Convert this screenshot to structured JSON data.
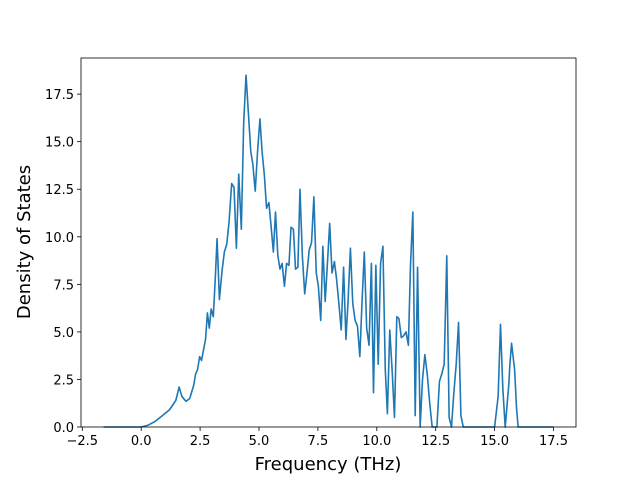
{
  "chart_data": {
    "type": "line",
    "xlabel": "Frequency (THz)",
    "ylabel": "Density of States",
    "xlim": [
      -2.555,
      18.455
    ],
    "ylim": [
      0,
      19.4
    ],
    "xticks": [
      {
        "value": -2.5,
        "label": "−2.5"
      },
      {
        "value": 0,
        "label": "0.0"
      },
      2.5,
      {
        "value": 5,
        "label": "5.0"
      },
      7.5,
      {
        "value": 10,
        "label": "10.0"
      },
      12.5,
      {
        "value": 15,
        "label": "15.0"
      },
      17.5
    ],
    "yticks": [
      {
        "value": 0,
        "label": "0.0"
      },
      2.5,
      {
        "value": 5,
        "label": "5.0"
      },
      7.5,
      {
        "value": 10,
        "label": "10.0"
      },
      12.5,
      {
        "value": 15,
        "label": "15.0"
      },
      17.5
    ],
    "color": "#1f77b4",
    "x": [
      -1.6,
      0,
      0.3,
      0.6,
      0.9,
      1.2,
      1.47,
      1.61,
      1.73,
      1.9,
      2.06,
      2.23,
      2.31,
      2.39,
      2.48,
      2.56,
      2.73,
      2.81,
      2.89,
      2.97,
      3.06,
      3.14,
      3.22,
      3.32,
      3.43,
      3.53,
      3.63,
      3.73,
      3.84,
      3.94,
      4.04,
      4.14,
      4.25,
      4.35,
      4.45,
      4.55,
      4.65,
      4.74,
      4.84,
      4.94,
      5.04,
      5.13,
      5.23,
      5.32,
      5.42,
      5.51,
      5.61,
      5.7,
      5.8,
      5.89,
      5.98,
      6.08,
      6.17,
      6.27,
      6.36,
      6.46,
      6.55,
      6.65,
      6.74,
      6.84,
      6.94,
      7.03,
      7.13,
      7.23,
      7.33,
      7.43,
      7.52,
      7.62,
      7.71,
      7.81,
      7.9,
      8.0,
      8.1,
      8.2,
      8.29,
      8.39,
      8.49,
      8.59,
      8.69,
      8.78,
      8.88,
      8.98,
      9.08,
      9.18,
      9.28,
      9.37,
      9.47,
      9.57,
      9.67,
      9.77,
      9.86,
      9.96,
      10.06,
      10.16,
      10.26,
      10.36,
      10.45,
      10.55,
      10.65,
      10.75,
      10.85,
      10.94,
      11.04,
      11.14,
      11.24,
      11.34,
      11.43,
      11.53,
      11.63,
      11.73,
      11.84,
      11.94,
      12.04,
      12.14,
      12.25,
      12.35,
      12.45,
      12.55,
      12.66,
      12.76,
      12.86,
      12.97,
      13.07,
      13.17,
      13.27,
      13.37,
      13.47,
      13.57,
      13.67,
      15.0,
      15.15,
      15.25,
      15.35,
      15.45,
      15.6,
      15.65,
      15.72,
      15.85,
      15.93,
      16.0,
      17.5
    ],
    "values": [
      0,
      0,
      0.1,
      0.3,
      0.6,
      0.9,
      1.4,
      2.1,
      1.6,
      1.35,
      1.5,
      2.2,
      2.8,
      3.0,
      3.7,
      3.5,
      4.6,
      6.0,
      5.2,
      6.2,
      5.8,
      7.7,
      9.9,
      6.7,
      8.2,
      9.2,
      9.6,
      10.8,
      12.8,
      12.6,
      9.4,
      13.3,
      10.4,
      16.0,
      18.5,
      16.5,
      14.5,
      13.8,
      12.4,
      14.5,
      16.2,
      14.5,
      13.2,
      11.5,
      11.8,
      10.6,
      9.2,
      11.3,
      9.0,
      8.3,
      8.6,
      7.4,
      8.6,
      8.5,
      10.5,
      10.4,
      8.3,
      8.4,
      12.5,
      9.0,
      7.0,
      8.0,
      9.3,
      9.7,
      12.1,
      8.1,
      7.4,
      5.6,
      9.5,
      6.6,
      8.5,
      10.7,
      8.1,
      8.7,
      7.8,
      6.5,
      5.1,
      8.4,
      4.6,
      6.6,
      9.4,
      6.5,
      5.6,
      5.3,
      3.7,
      6.5,
      9.2,
      5.2,
      4.3,
      8.6,
      1.8,
      8.5,
      3.3,
      8.6,
      9.5,
      3.0,
      0.7,
      5.1,
      3.0,
      0.5,
      5.8,
      5.7,
      4.7,
      4.8,
      5.0,
      4.3,
      8.5,
      11.3,
      0.6,
      8.4,
      0,
      2.5,
      3.8,
      2.8,
      1.2,
      0,
      0,
      0,
      2.4,
      2.8,
      3.3,
      9.0,
      0.5,
      0,
      1.8,
      3.3,
      5.5,
      0.6,
      0,
      0,
      1.6,
      5.4,
      2.0,
      0,
      2.2,
      3.3,
      4.4,
      3.0,
      1.0,
      0,
      0
    ]
  }
}
